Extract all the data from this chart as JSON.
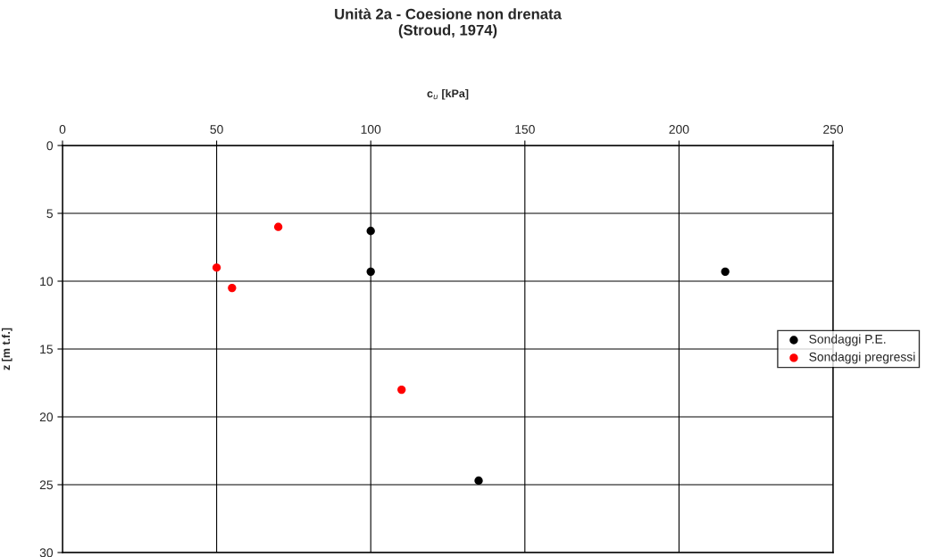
{
  "chart_data": {
    "type": "scatter",
    "title": "Unità 2a - Coesione non drenata\n(Stroud, 1974)",
    "xlabel": "c$_{u}$ [kPa]",
    "ylabel": "z [m t.f.]",
    "series": [
      {
        "name": "Sondaggi P.E.",
        "color": "#000000",
        "x": [
          100,
          100,
          215,
          135
        ],
        "values": [
          6.3,
          9.3,
          9.3,
          24.7
        ]
      },
      {
        "name": "Sondaggi pregressi",
        "color": "#ff0000",
        "x": [
          70,
          50,
          55,
          110
        ],
        "values": [
          6.0,
          9.0,
          10.5,
          18.0
        ]
      }
    ],
    "xlim": [
      0,
      250
    ],
    "xticks": [
      0,
      50,
      100,
      150,
      200,
      250
    ],
    "ylim": [
      30,
      0
    ],
    "yticks": [
      0,
      5,
      10,
      15,
      20,
      25,
      30
    ],
    "grid": true,
    "legend": "right",
    "marker": "circle"
  }
}
